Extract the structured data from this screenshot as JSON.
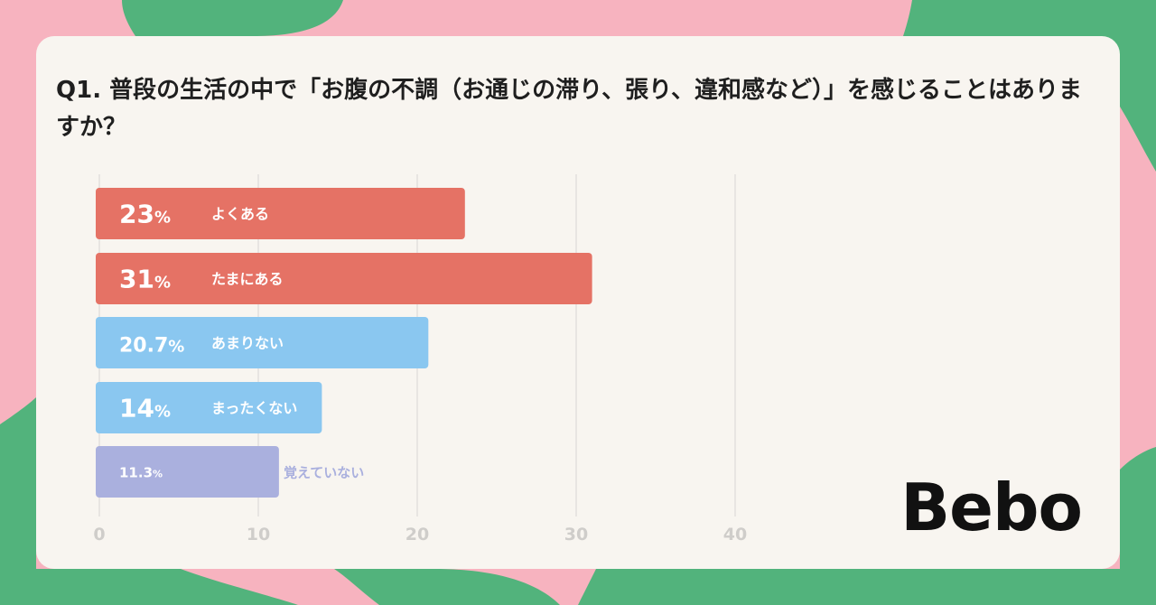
{
  "colors": {
    "background_pink": "#f7b3bf",
    "background_green": "#52b37c",
    "card": "#f8f5f0",
    "often": "#e57265",
    "rarely": "#8ac7f0",
    "dont_remember": "#aab0de",
    "grid": "#e2e0dd",
    "axis_text": "#cfcdca"
  },
  "title": "Q1. 普段の生活の中で「お腹の不調（お通じの滞り、張り、違和感など）」を感じることはありますか？",
  "brand": "Bebo",
  "chart_data": {
    "type": "bar",
    "orientation": "horizontal",
    "title": "Q1. 普段の生活の中で「お腹の不調（お通じの滞り、張り、違和感など）」を感じることはありますか？",
    "categories": [
      "よくある",
      "たまにある",
      "あまりない",
      "まったくない",
      "覚えていない"
    ],
    "values": [
      23,
      31,
      20.7,
      14,
      11.3
    ],
    "value_labels": [
      "23",
      "31",
      "20.7",
      "14",
      "11.3"
    ],
    "unit": "%",
    "bar_colors": [
      "#e57265",
      "#e57265",
      "#8ac7f0",
      "#8ac7f0",
      "#aab0de"
    ],
    "x_ticks": [
      "0",
      "10",
      "20",
      "30",
      "40"
    ],
    "xlim": [
      0,
      40
    ],
    "grid": true,
    "legend": "none"
  }
}
